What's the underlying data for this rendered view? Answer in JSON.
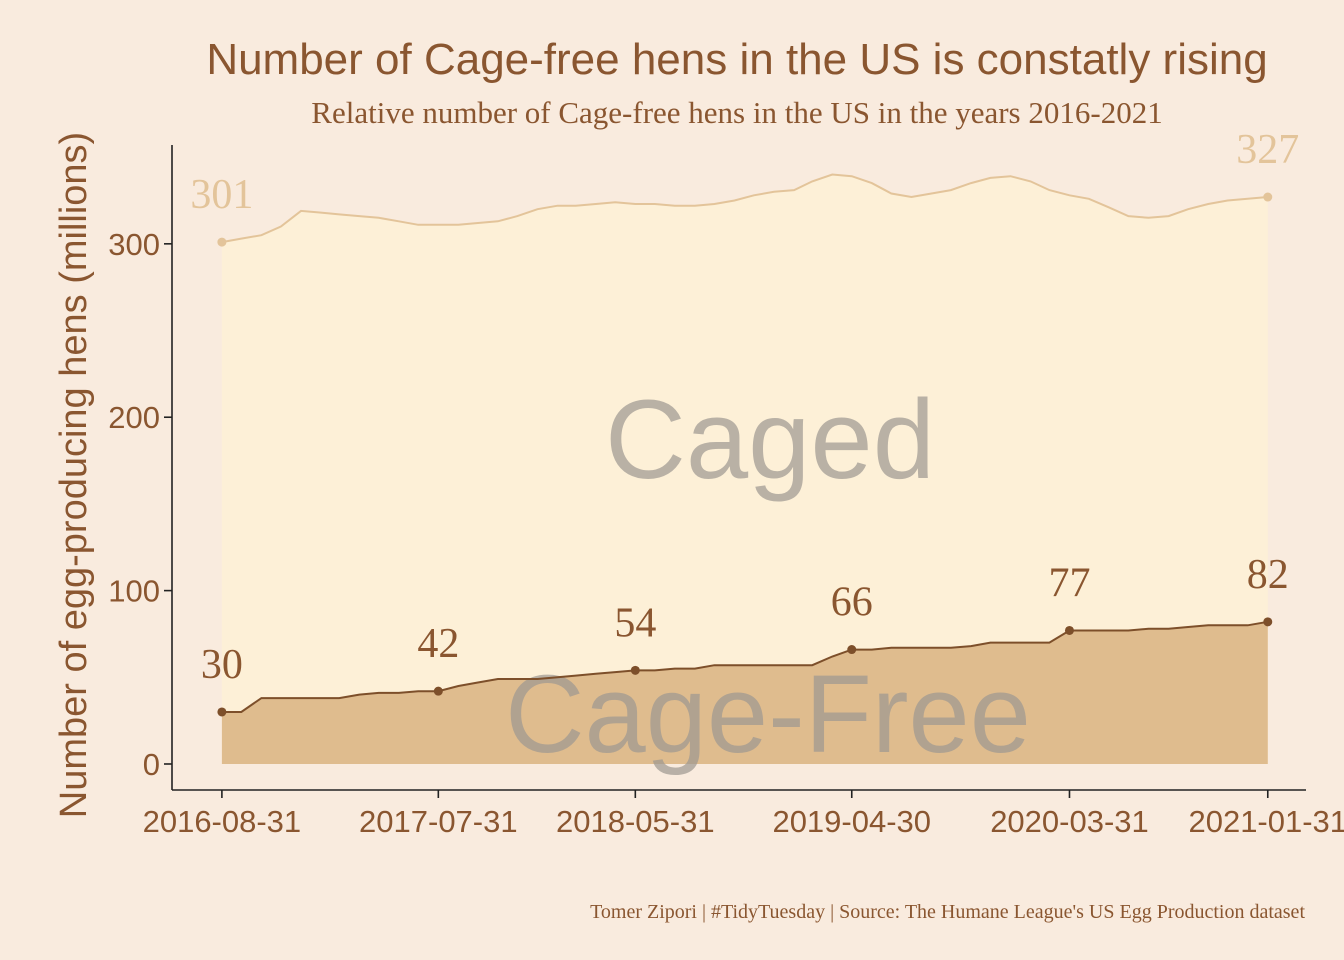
{
  "chart_data": {
    "type": "area",
    "title": "Number of Cage-free hens in the US is constatly rising",
    "subtitle": "Relative number of Cage-free hens in the US in the years 2016-2021",
    "ylabel": "Number of egg-producing hens (millions)",
    "caption": "Tomer Zipori | #TidyTuesday | Source: The Humane League's US Egg Production dataset",
    "ylim": [
      -15,
      357
    ],
    "xlim": [
      "2016-06-15",
      "2021-03-31"
    ],
    "y_ticks": [
      0,
      100,
      200,
      300
    ],
    "x_ticks": [
      "2016-08-31",
      "2017-07-31",
      "2018-05-31",
      "2019-04-30",
      "2020-03-31",
      "2021-01-31"
    ],
    "grid": false,
    "legend": "none",
    "area_labels": {
      "caged": "Caged",
      "cage_free": "Cage-Free"
    },
    "colors": {
      "background": "#f9ebde",
      "total_area": "#fdf0d7",
      "total_line": "#e3c49a",
      "cage_free_area": "#dfbc8e",
      "cage_free_line": "#7d4f2a",
      "text": "#8a5630",
      "area_label": "#9e9892"
    },
    "series": [
      {
        "key": "total",
        "x": [
          "2016-08-31",
          "2016-09-30",
          "2016-10-31",
          "2016-11-30",
          "2016-12-31",
          "2017-01-31",
          "2017-02-28",
          "2017-03-31",
          "2017-04-30",
          "2017-05-31",
          "2017-06-30",
          "2017-07-31",
          "2017-08-31",
          "2017-09-30",
          "2017-10-31",
          "2017-11-30",
          "2017-12-31",
          "2018-01-31",
          "2018-02-28",
          "2018-03-31",
          "2018-04-30",
          "2018-05-31",
          "2018-06-30",
          "2018-07-31",
          "2018-08-31",
          "2018-09-30",
          "2018-10-31",
          "2018-11-30",
          "2018-12-31",
          "2019-01-31",
          "2019-02-28",
          "2019-03-31",
          "2019-04-30",
          "2019-05-31",
          "2019-06-30",
          "2019-07-31",
          "2019-08-31",
          "2019-09-30",
          "2019-10-31",
          "2019-11-30",
          "2019-12-31",
          "2020-01-31",
          "2020-02-29",
          "2020-03-31",
          "2020-04-30",
          "2020-05-31",
          "2020-06-30",
          "2020-07-31",
          "2020-08-31",
          "2020-09-30",
          "2020-10-31",
          "2020-11-30",
          "2020-12-31",
          "2021-01-31"
        ],
        "values": [
          301,
          303,
          305,
          310,
          319,
          318,
          317,
          316,
          315,
          313,
          311,
          311,
          311,
          312,
          313,
          316,
          320,
          322,
          322,
          323,
          324,
          323,
          323,
          322,
          322,
          323,
          325,
          328,
          330,
          331,
          336,
          340,
          339,
          335,
          329,
          327,
          329,
          331,
          335,
          338,
          339,
          336,
          331,
          328,
          326,
          321,
          316,
          315,
          316,
          320,
          323,
          325,
          326,
          327
        ]
      },
      {
        "key": "cage_free",
        "x": [
          "2016-08-31",
          "2016-09-30",
          "2016-10-31",
          "2016-11-30",
          "2016-12-31",
          "2017-01-31",
          "2017-02-28",
          "2017-03-31",
          "2017-04-30",
          "2017-05-31",
          "2017-06-30",
          "2017-07-31",
          "2017-08-31",
          "2017-09-30",
          "2017-10-31",
          "2017-11-30",
          "2017-12-31",
          "2018-01-31",
          "2018-02-28",
          "2018-03-31",
          "2018-04-30",
          "2018-05-31",
          "2018-06-30",
          "2018-07-31",
          "2018-08-31",
          "2018-09-30",
          "2018-10-31",
          "2018-11-30",
          "2018-12-31",
          "2019-01-31",
          "2019-02-28",
          "2019-03-31",
          "2019-04-30",
          "2019-05-31",
          "2019-06-30",
          "2019-07-31",
          "2019-08-31",
          "2019-09-30",
          "2019-10-31",
          "2019-11-30",
          "2019-12-31",
          "2020-01-31",
          "2020-02-29",
          "2020-03-31",
          "2020-04-30",
          "2020-05-31",
          "2020-06-30",
          "2020-07-31",
          "2020-08-31",
          "2020-09-30",
          "2020-10-31",
          "2020-11-30",
          "2020-12-31",
          "2021-01-31"
        ],
        "values": [
          30,
          30,
          38,
          38,
          38,
          38,
          38,
          40,
          41,
          41,
          42,
          42,
          45,
          47,
          49,
          49,
          49,
          50,
          51,
          52,
          53,
          54,
          54,
          55,
          55,
          57,
          57,
          57,
          57,
          57,
          57,
          62,
          66,
          66,
          67,
          67,
          67,
          67,
          68,
          70,
          70,
          70,
          70,
          77,
          77,
          77,
          77,
          78,
          78,
          79,
          80,
          80,
          80,
          82
        ]
      }
    ],
    "point_labels": [
      {
        "series": "total",
        "x": "2016-08-31",
        "y": 301,
        "label": "301"
      },
      {
        "series": "total",
        "x": "2021-01-31",
        "y": 327,
        "label": "327"
      },
      {
        "series": "cage_free",
        "x": "2016-08-31",
        "y": 30,
        "label": "30"
      },
      {
        "series": "cage_free",
        "x": "2017-07-31",
        "y": 42,
        "label": "42"
      },
      {
        "series": "cage_free",
        "x": "2018-05-31",
        "y": 54,
        "label": "54"
      },
      {
        "series": "cage_free",
        "x": "2019-04-30",
        "y": 66,
        "label": "66"
      },
      {
        "series": "cage_free",
        "x": "2020-03-31",
        "y": 77,
        "label": "77"
      },
      {
        "series": "cage_free",
        "x": "2021-01-31",
        "y": 82,
        "label": "82"
      }
    ]
  }
}
